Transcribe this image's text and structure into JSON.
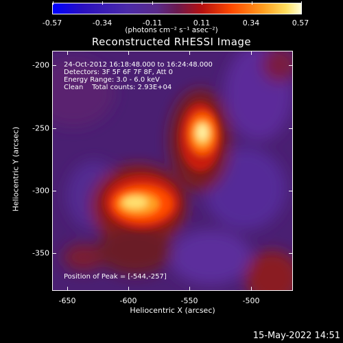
{
  "colorbar": {
    "ticks": [
      "-0.57",
      "-0.34",
      "-0.11",
      "0.11",
      "0.34",
      "0.57"
    ],
    "units": "(photons cm⁻² s⁻¹ asec⁻²)"
  },
  "title": "Reconstructed RHESSI Image",
  "info": {
    "line1": "24-Oct-2012 16:18:48.000 to 16:24:48.000",
    "line2": "Detectors: 3F 5F 6F 7F 8F, Att 0",
    "line3": "Energy Range: 3.0 - 6.0 keV",
    "line4": "Clean    Total counts: 2.93E+04",
    "peak": "Position of Peak = [-544,-257]"
  },
  "axes": {
    "x_label": "Heliocentric X (arcsec)",
    "y_label": "Heliocentric Y (arcsec)",
    "x_ticks": [
      "-650",
      "-600",
      "-550",
      "-500"
    ],
    "y_ticks": [
      "-200",
      "-250",
      "-300",
      "-350"
    ]
  },
  "footer": "15-May-2022 14:51",
  "colors": {
    "background": "#000000",
    "colormap": [
      "#0000ff",
      "#3b00a0",
      "#5a1e8a",
      "#8a1f3a",
      "#d4201a",
      "#ff6a00",
      "#ffd23a",
      "#ffffd0"
    ]
  }
}
